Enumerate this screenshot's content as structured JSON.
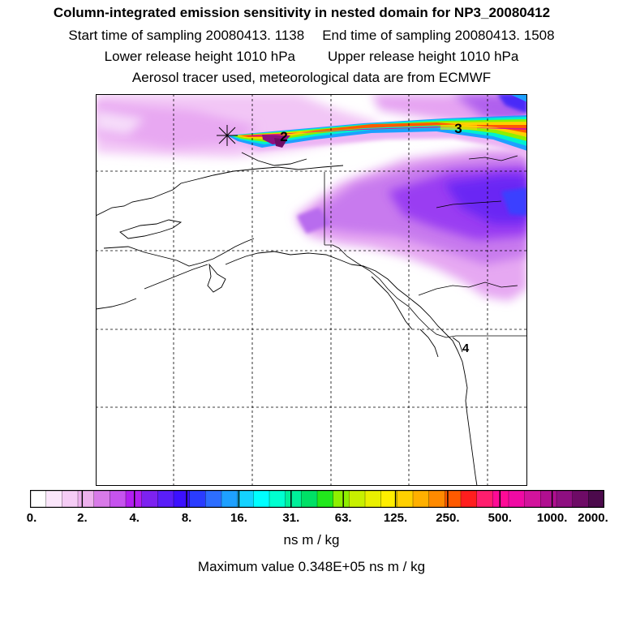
{
  "header": {
    "title": "Column-integrated emission sensitivity in nested domain for NP3_20080412",
    "start_label": "Start time of sampling 20080413.  1138",
    "end_label": "End time of sampling 20080413.  1508",
    "lower_label": "Lower release height 1010 hPa",
    "upper_label": "Upper release height 1010 hPa",
    "tracer_label": "Aerosol tracer used, meteorological data are from ECMWF"
  },
  "map": {
    "markers": [
      "2",
      "3",
      "4"
    ],
    "release_symbol": "asterisk-icon"
  },
  "colorbar": {
    "ticks": [
      "0.",
      "2.",
      "4.",
      "8.",
      "16.",
      "31.",
      "63.",
      "125.",
      "250.",
      "500.",
      "1000.",
      "2000."
    ],
    "colors": [
      "#ffffff",
      "#fbe6fb",
      "#f5ccf5",
      "#eeb0ee",
      "#d87ae8",
      "#c653ee",
      "#b21ef0",
      "#7d22f0",
      "#5a1ef8",
      "#3c10ff",
      "#2a3cff",
      "#2d6eff",
      "#1ea0ff",
      "#14d2ff",
      "#00ffff",
      "#00ffd0",
      "#00f09a",
      "#00e066",
      "#22e81c",
      "#8ef000",
      "#c8f000",
      "#eaf000",
      "#ffee00",
      "#ffd000",
      "#ffb000",
      "#ff8a00",
      "#ff5a00",
      "#ff1e1e",
      "#ff1e6e",
      "#ff0a96",
      "#f00aa4",
      "#d2139c",
      "#b00f90",
      "#8e0f80",
      "#6e0b66",
      "#4c0a4c"
    ],
    "units": "ns m / kg",
    "max_label": "Maximum value  0.348E+05 ns m / kg"
  }
}
